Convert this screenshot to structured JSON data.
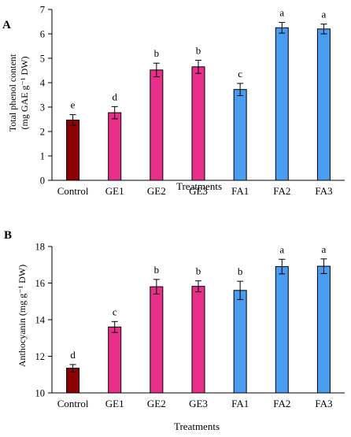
{
  "chart_data": [
    {
      "panel": "A",
      "type": "bar",
      "categories": [
        "Control",
        "GE1",
        "GE2",
        "GE3",
        "FA1",
        "FA2",
        "FA3"
      ],
      "values": [
        2.47,
        2.77,
        4.52,
        4.65,
        3.72,
        6.25,
        6.2
      ],
      "errors": [
        0.22,
        0.25,
        0.28,
        0.27,
        0.25,
        0.22,
        0.2
      ],
      "significance": [
        "e",
        "d",
        "b",
        "b",
        "c",
        "a",
        "a"
      ],
      "colors": [
        "#8b0000",
        "#e8308a",
        "#e8308a",
        "#e8308a",
        "#4a9cf0",
        "#4a9cf0",
        "#4a9cf0"
      ],
      "xlabel": "Treatments",
      "ylabel_line1": "Total phenol content",
      "ylabel_line2": "(mg GAE g⁻¹ DW)",
      "ylim": [
        0,
        7
      ],
      "yticks": [
        "0",
        "1",
        "2",
        "3",
        "4",
        "5",
        "6",
        "7"
      ],
      "grid": false
    },
    {
      "panel": "B",
      "type": "bar",
      "categories": [
        "Control",
        "GE1",
        "GE2",
        "GE3",
        "FA1",
        "FA2",
        "FA3"
      ],
      "values": [
        11.35,
        13.6,
        15.8,
        15.82,
        15.6,
        16.9,
        16.92
      ],
      "errors": [
        0.2,
        0.3,
        0.4,
        0.3,
        0.5,
        0.4,
        0.4
      ],
      "significance": [
        "d",
        "c",
        "b",
        "b",
        "b",
        "a",
        "a"
      ],
      "colors": [
        "#8b0000",
        "#e8308a",
        "#e8308a",
        "#e8308a",
        "#4a9cf0",
        "#4a9cf0",
        "#4a9cf0"
      ],
      "xlabel": "Treatments",
      "ylabel": "Anthocyanin (mg g⁻¹ DW)",
      "ylim": [
        10,
        18
      ],
      "yticks": [
        "10",
        "12",
        "14",
        "16",
        "18"
      ],
      "grid": false
    }
  ]
}
